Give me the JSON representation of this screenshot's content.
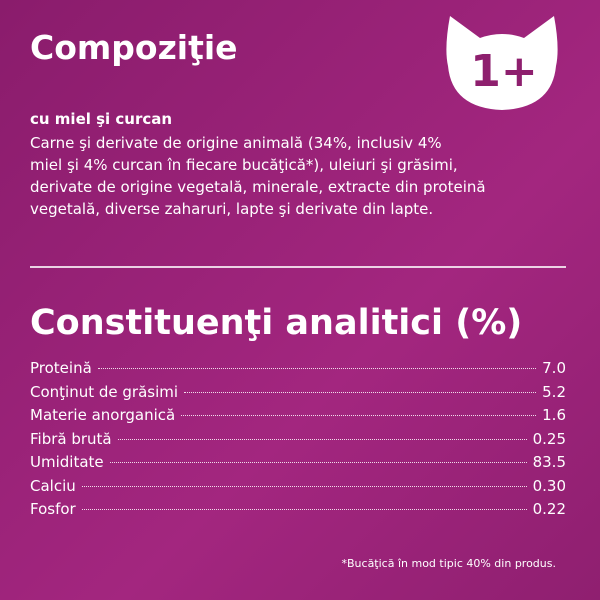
{
  "header": {
    "title": "Compoziţie",
    "badge": "1+"
  },
  "composition": {
    "subtitle": "cu miel şi curcan",
    "lines": [
      "Carne şi derivate de origine animală (34%, inclusiv 4%",
      "miel şi 4% curcan în fiecare bucăţică*), uleiuri şi grăsimi,",
      "derivate de origine vegetală, minerale, extracte din proteină",
      "vegetală, diverse zaharuri, lapte şi derivate din lapte."
    ]
  },
  "analysis": {
    "title": "Constituenţi analitici (%)",
    "rows": [
      [
        "Proteină",
        "7.0"
      ],
      [
        "Conţinut de grăsimi",
        "5.2"
      ],
      [
        "Materie anorganică",
        "1.6"
      ],
      [
        "Fibră brută",
        "0.25"
      ],
      [
        "Umiditate",
        "83.5"
      ],
      [
        "Calciu",
        "0.30"
      ],
      [
        "Fosfor",
        "0.22"
      ]
    ]
  },
  "footnote": "*Bucăţică în mod tipic 40% din produs."
}
